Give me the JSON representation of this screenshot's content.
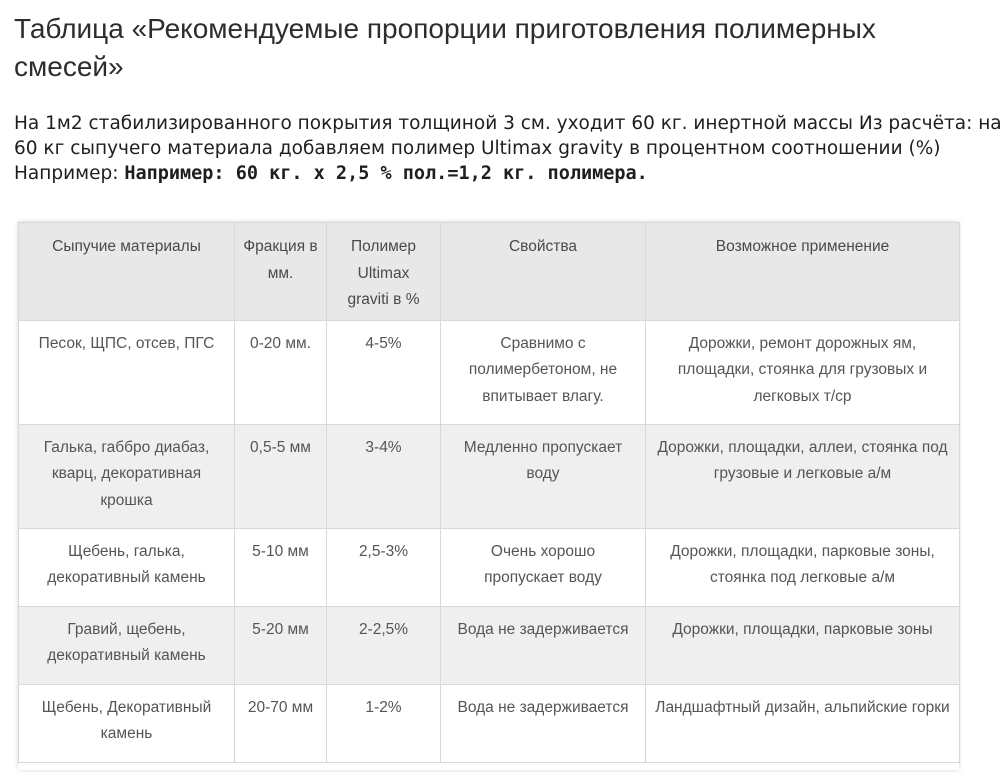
{
  "title": "Таблица «Рекомендуемые пропорции приготовления полимерных смесей»",
  "intro": {
    "line1": "На 1м2 стабилизированного покрытия толщиной 3 см. уходит 60 кг. инертной массы Из расчёта: на",
    "line2": "60 кг сыпучего материала добавляем полимер Ultimax gravity в процентном соотношении (%)",
    "line3_prefix": "Например: ",
    "line3_bold": "Например: 60 кг. х 2,5 % пол.=1,2 кг. полимера."
  },
  "table": {
    "headers": [
      "Сыпучие материалы",
      "Фракция в мм.",
      "Полимер Ultimax graviti в %",
      "Свойства",
      "Возможное применение"
    ],
    "rows": [
      {
        "material": "Песок, ЩПС, отсев, ПГС",
        "fraction": "0-20 мм.",
        "polymer": "4-5%",
        "properties": "Сравнимо с полимербетоном, не впитывает влагу.",
        "usage": "Дорожки, ремонт дорожных ям, площадки, стоянка для грузовых и легковых т/ср"
      },
      {
        "material": "Галька, габбро диабаз, кварц, декоративная крошка",
        "fraction": "0,5-5 мм",
        "polymer": "3-4%",
        "properties": "Медленно пропускает воду",
        "usage": "Дорожки, площадки, аллеи, стоянка под грузовые и легковые а/м"
      },
      {
        "material": "Щебень, галька, декоративный камень",
        "fraction": "5-10 мм",
        "polymer": "2,5-3%",
        "properties": "Очень хорошо пропускает воду",
        "usage": "Дорожки, площадки, парковые зоны, стоянка под легковые а/м"
      },
      {
        "material": "Гравий, щебень, декоративный камень",
        "fraction": "5-20 мм",
        "polymer": "2-2,5%",
        "properties": "Вода не задерживается",
        "usage": "Дорожки, площадки, парковые зоны"
      },
      {
        "material": "Щебень, Декоративный камень",
        "fraction": "20-70 мм",
        "polymer": "1-2%",
        "properties": "Вода не задерживается",
        "usage": "Ландшафтный дизайн, альпийские горки"
      }
    ]
  }
}
